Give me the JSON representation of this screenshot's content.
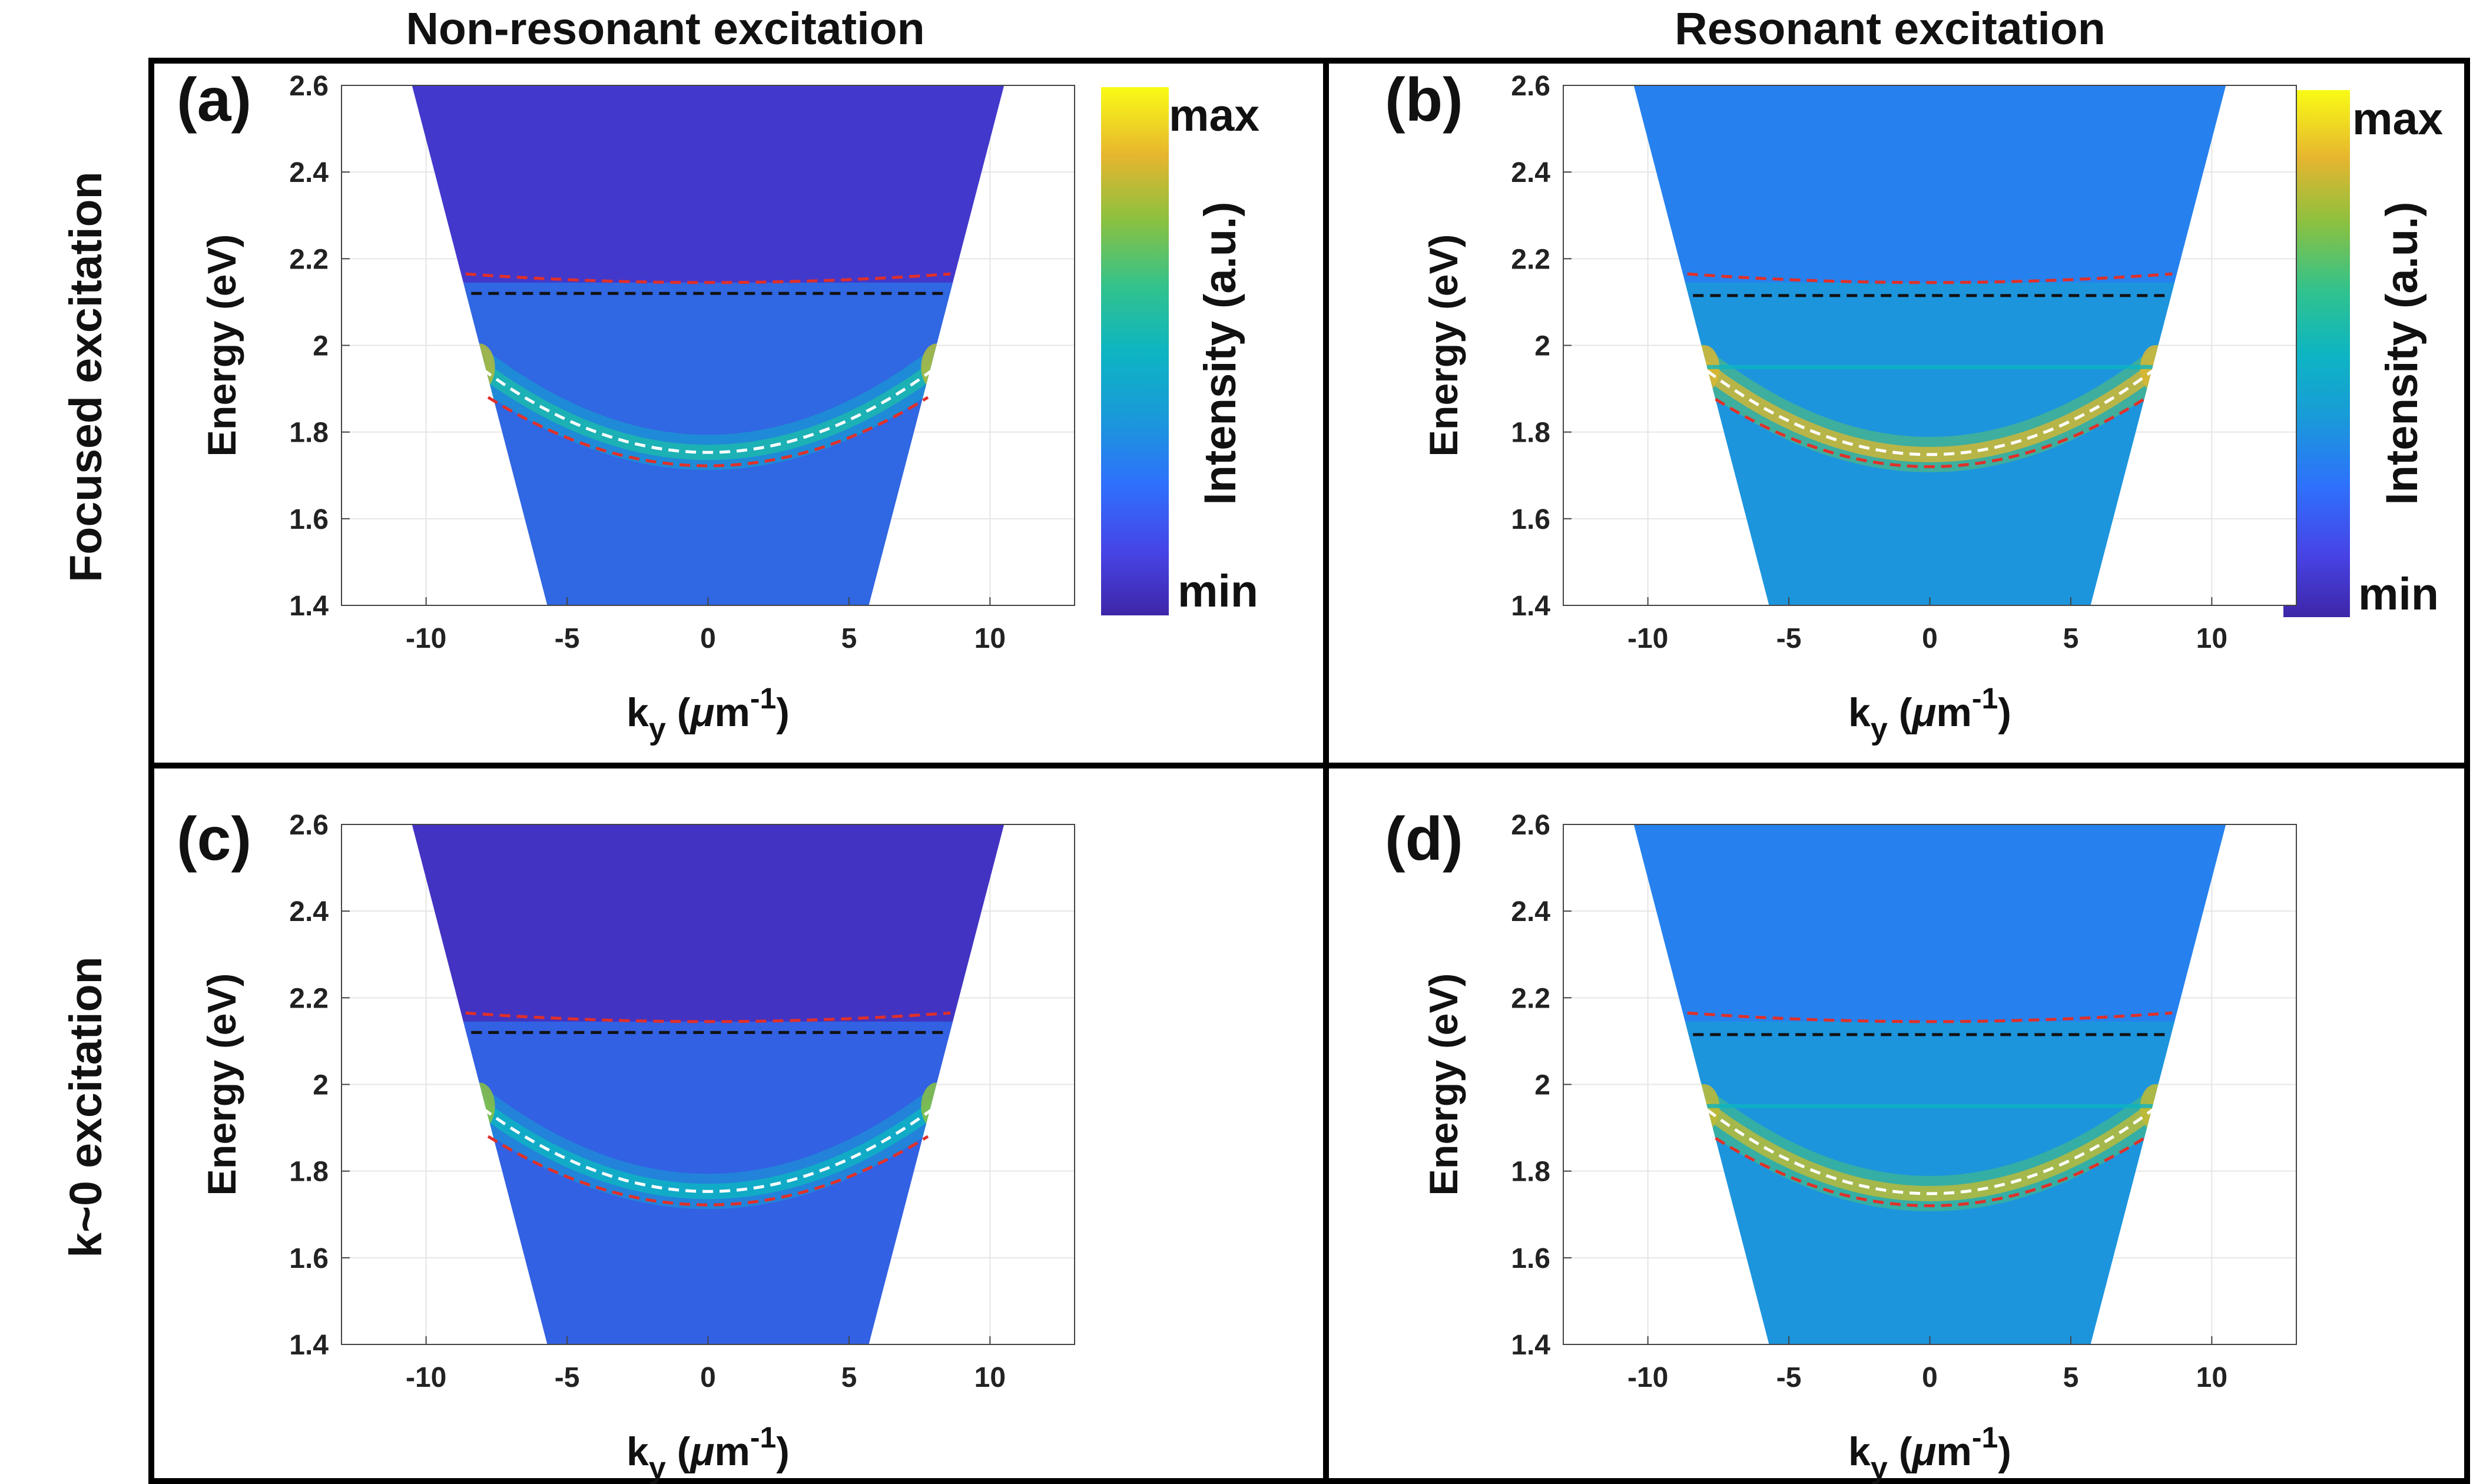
{
  "column_titles": [
    "Non-resonant excitation",
    "Resonant excitation"
  ],
  "row_titles": [
    "Focused excitation",
    "k~0 excitation"
  ],
  "colorbar": {
    "label": "Intensity (a.u.)",
    "max_label": "max",
    "min_label": "min"
  },
  "colors": {
    "red_dashed": "#e0302a",
    "black_dashed": "#111111",
    "white_dashed": "#ffffff",
    "colormap": "parula"
  },
  "chart_data": [
    {
      "type": "heatmap",
      "panel": "(a)",
      "xlabel": "k",
      "xlabel_sub": "y",
      "xlabel_units_pre": " (",
      "xlabel_mu": "μ",
      "xlabel_units": "m",
      "xlabel_sup": "-1",
      "xlabel_close": ")",
      "ylabel": "Energy (eV)",
      "xlim": [
        -13,
        13
      ],
      "ylim": [
        1.4,
        2.6
      ],
      "xticks": [
        -10,
        -5,
        0,
        5,
        10
      ],
      "xtick_labels": [
        "-10",
        "-5",
        "0",
        "5",
        "10"
      ],
      "yticks": [
        1.4,
        1.6,
        1.8,
        2.0,
        2.2,
        2.4,
        2.6
      ],
      "ytick_labels": [
        "1.4",
        "1.6",
        "1.8",
        "2",
        "2.2",
        "2.4",
        "2.6"
      ],
      "grid": true,
      "aperture_top_k": [
        -10.5,
        10.5
      ],
      "aperture_bottom_k": [
        -5.7,
        5.7
      ],
      "background_level": 0.07,
      "lower_band_level": 0.3,
      "parabola_peak_level": 0.55,
      "edge_peak_level": 0.8,
      "curves": [
        {
          "name": "red_upper",
          "style": "red-dashed",
          "k_range": [
            -8.6,
            8.6
          ],
          "e0": 2.145,
          "a": 0.00027
        },
        {
          "name": "black_flat",
          "style": "black-dashed",
          "k_range": [
            -8.4,
            8.4
          ],
          "e0": 2.12,
          "a": 0
        },
        {
          "name": "white_parabola",
          "style": "white-dashed",
          "k_range": [
            -8.0,
            8.0
          ],
          "e0": 1.753,
          "a": 0.003
        },
        {
          "name": "red_lower",
          "style": "red-dashed",
          "k_range": [
            -7.8,
            7.8
          ],
          "e0": 1.722,
          "a": 0.0026
        }
      ]
    },
    {
      "type": "heatmap",
      "panel": "(b)",
      "xlabel": "k",
      "xlabel_sub": "y",
      "xlabel_units_pre": " (",
      "xlabel_mu": "μ",
      "xlabel_units": "m",
      "xlabel_sup": "-1",
      "xlabel_close": ")",
      "ylabel": "Energy (eV)",
      "xlim": [
        -13,
        13
      ],
      "ylim": [
        1.4,
        2.6
      ],
      "xticks": [
        -10,
        -5,
        0,
        5,
        10
      ],
      "xtick_labels": [
        "-10",
        "-5",
        "0",
        "5",
        "10"
      ],
      "yticks": [
        1.4,
        1.6,
        1.8,
        2.0,
        2.2,
        2.4,
        2.6
      ],
      "ytick_labels": [
        "1.4",
        "1.6",
        "1.8",
        "2",
        "2.2",
        "2.4",
        "2.6"
      ],
      "grid": true,
      "aperture_top_k": [
        -10.5,
        10.5
      ],
      "aperture_bottom_k": [
        -5.7,
        5.7
      ],
      "background_level": 0.3,
      "lower_band_level": 0.4,
      "parabola_peak_level": 0.85,
      "edge_peak_level": 0.85,
      "laser_line_e": 1.95,
      "curves": [
        {
          "name": "red_upper",
          "style": "red-dashed",
          "k_range": [
            -8.6,
            8.6
          ],
          "e0": 2.145,
          "a": 0.00027
        },
        {
          "name": "black_flat",
          "style": "black-dashed",
          "k_range": [
            -8.4,
            8.4
          ],
          "e0": 2.115,
          "a": 0
        },
        {
          "name": "white_parabola",
          "style": "white-dashed",
          "k_range": [
            -7.9,
            7.9
          ],
          "e0": 1.748,
          "a": 0.0031
        },
        {
          "name": "red_lower",
          "style": "red-dashed",
          "k_range": [
            -7.6,
            7.6
          ],
          "e0": 1.72,
          "a": 0.0027
        }
      ]
    },
    {
      "type": "heatmap",
      "panel": "(c)",
      "xlabel": "k",
      "xlabel_sub": "y",
      "xlabel_units_pre": " (",
      "xlabel_mu": "μ",
      "xlabel_units": "m",
      "xlabel_sup": "-1",
      "xlabel_close": ")",
      "ylabel": "Energy (eV)",
      "xlim": [
        -13,
        13
      ],
      "ylim": [
        1.4,
        2.6
      ],
      "xticks": [
        -10,
        -5,
        0,
        5,
        10
      ],
      "xtick_labels": [
        "-10",
        "-5",
        "0",
        "5",
        "10"
      ],
      "yticks": [
        1.4,
        1.6,
        1.8,
        2.0,
        2.2,
        2.4,
        2.6
      ],
      "ytick_labels": [
        "1.4",
        "1.6",
        "1.8",
        "2",
        "2.2",
        "2.4",
        "2.6"
      ],
      "grid": true,
      "aperture_top_k": [
        -10.5,
        10.5
      ],
      "aperture_bottom_k": [
        -5.7,
        5.7
      ],
      "background_level": 0.05,
      "lower_band_level": 0.28,
      "parabola_peak_level": 0.5,
      "edge_peak_level": 0.75,
      "curves": [
        {
          "name": "red_upper",
          "style": "red-dashed",
          "k_range": [
            -8.6,
            8.6
          ],
          "e0": 2.145,
          "a": 0.00027
        },
        {
          "name": "black_flat",
          "style": "black-dashed",
          "k_range": [
            -8.4,
            8.4
          ],
          "e0": 2.12,
          "a": 0
        },
        {
          "name": "white_parabola",
          "style": "white-dashed",
          "k_range": [
            -8.0,
            8.0
          ],
          "e0": 1.753,
          "a": 0.003
        },
        {
          "name": "red_lower",
          "style": "red-dashed",
          "k_range": [
            -7.8,
            7.8
          ],
          "e0": 1.722,
          "a": 0.0026
        }
      ]
    },
    {
      "type": "heatmap",
      "panel": "(d)",
      "xlabel": "k",
      "xlabel_sub": "y",
      "xlabel_units_pre": " (",
      "xlabel_mu": "μ",
      "xlabel_units": "m",
      "xlabel_sup": "-1",
      "xlabel_close": ")",
      "ylabel": "Energy (eV)",
      "xlim": [
        -13,
        13
      ],
      "ylim": [
        1.4,
        2.6
      ],
      "xticks": [
        -10,
        -5,
        0,
        5,
        10
      ],
      "xtick_labels": [
        "-10",
        "-5",
        "0",
        "5",
        "10"
      ],
      "yticks": [
        1.4,
        1.6,
        1.8,
        2.0,
        2.2,
        2.4,
        2.6
      ],
      "ytick_labels": [
        "1.4",
        "1.6",
        "1.8",
        "2",
        "2.2",
        "2.4",
        "2.6"
      ],
      "grid": true,
      "aperture_top_k": [
        -10.5,
        10.5
      ],
      "aperture_bottom_k": [
        -5.7,
        5.7
      ],
      "background_level": 0.3,
      "lower_band_level": 0.4,
      "parabola_peak_level": 0.82,
      "edge_peak_level": 0.82,
      "laser_line_e": 1.95,
      "curves": [
        {
          "name": "red_upper",
          "style": "red-dashed",
          "k_range": [
            -8.6,
            8.6
          ],
          "e0": 2.145,
          "a": 0.00027
        },
        {
          "name": "black_flat",
          "style": "black-dashed",
          "k_range": [
            -8.4,
            8.4
          ],
          "e0": 2.115,
          "a": 0
        },
        {
          "name": "white_parabola",
          "style": "white-dashed",
          "k_range": [
            -7.9,
            7.9
          ],
          "e0": 1.748,
          "a": 0.0031
        },
        {
          "name": "red_lower",
          "style": "red-dashed",
          "k_range": [
            -7.6,
            7.6
          ],
          "e0": 1.72,
          "a": 0.0027
        }
      ]
    }
  ]
}
